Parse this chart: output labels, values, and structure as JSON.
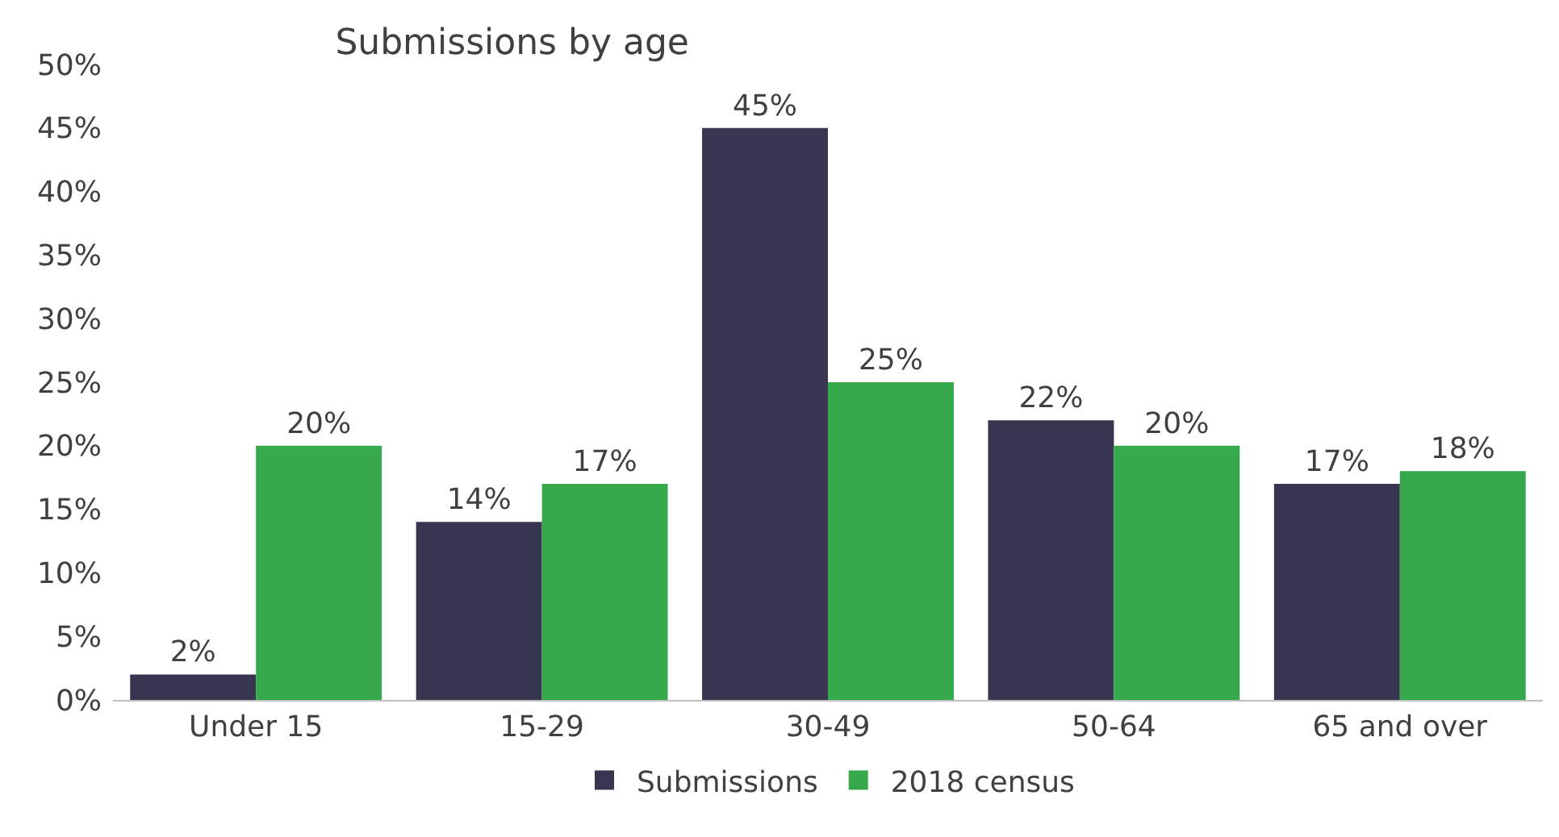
{
  "chart_data": {
    "type": "bar",
    "title": "Submissions by age",
    "categories": [
      "Under 15",
      "15-29",
      "30-49",
      "50-64",
      "65 and over"
    ],
    "series": [
      {
        "name": "Submissions",
        "color": "#383550",
        "values": [
          2,
          14,
          45,
          22,
          17
        ],
        "value_labels": [
          "2%",
          "14%",
          "45%",
          "22%",
          "17%"
        ]
      },
      {
        "name": "2018 census",
        "color": "#35a94b",
        "values": [
          20,
          17,
          25,
          20,
          18
        ],
        "value_labels": [
          "20%",
          "17%",
          "25%",
          "20%",
          "18%"
        ]
      }
    ],
    "ylim": [
      0,
      50
    ],
    "yticks": [
      {
        "value": 0,
        "label": "0%"
      },
      {
        "value": 5,
        "label": "5%"
      },
      {
        "value": 10,
        "label": "10%"
      },
      {
        "value": 15,
        "label": "15%"
      },
      {
        "value": 20,
        "label": "20%"
      },
      {
        "value": 25,
        "label": "25%"
      },
      {
        "value": 30,
        "label": "30%"
      },
      {
        "value": 35,
        "label": "35%"
      },
      {
        "value": 40,
        "label": "40%"
      },
      {
        "value": 45,
        "label": "45%"
      },
      {
        "value": 50,
        "label": "50%"
      }
    ],
    "grid": false,
    "legend": "bottom"
  }
}
